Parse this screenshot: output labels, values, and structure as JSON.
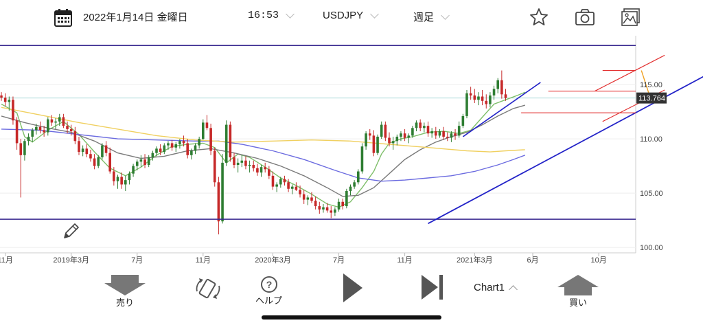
{
  "header": {
    "date": "2022年1月14日 金曜日",
    "time": "16:53",
    "symbol": "USDJPY",
    "timeframe": "週足"
  },
  "footer": {
    "sell_label": "売り",
    "help_label": "ヘルプ",
    "chart_label": "Chart1",
    "buy_label": "買い"
  },
  "colors": {
    "bull": "#2e7d32",
    "bear": "#c62828",
    "ma_fast": "#7fbf6a",
    "ma_mid": "#7a7a7a",
    "ma_slow_blue": "#6b6be0",
    "ma_long_yellow": "#f0d060",
    "trend_line": "#2323c8",
    "channel": "#e23030",
    "horizontal_frame": "#3a2a90"
  },
  "chart_data": {
    "type": "candlestick",
    "y_axis": {
      "min": 99.5,
      "max": 119.5,
      "ticks": [
        100.0,
        105.0,
        110.0,
        115.0
      ]
    },
    "x_axis": {
      "ticks": [
        {
          "label": "11月",
          "t": 1
        },
        {
          "label": "2019年3月",
          "t": 18
        },
        {
          "label": "7月",
          "t": 35
        },
        {
          "label": "11月",
          "t": 52
        },
        {
          "label": "2020年3月",
          "t": 70
        },
        {
          "label": "7月",
          "t": 87
        },
        {
          "label": "11月",
          "t": 104
        },
        {
          "label": "2021年3月",
          "t": 122
        },
        {
          "label": "6月",
          "t": 137
        },
        {
          "label": "10月",
          "t": 154
        }
      ]
    },
    "current_price": "113.764",
    "current_price_value": 113.764,
    "horizontal_lines": [
      118.6,
      102.6
    ],
    "trend_lines": [
      {
        "from": [
          110,
          102.2
        ],
        "to": [
          196,
          118.6
        ]
      }
    ],
    "red_lines": [
      {
        "type": "h",
        "y": 116.3,
        "x0": 155,
        "x1": 196
      },
      {
        "type": "h",
        "y": 114.4,
        "x0": 141,
        "x1": 196
      },
      {
        "type": "h",
        "y": 112.4,
        "x0": 134,
        "x1": 196
      },
      {
        "type": "seg",
        "from": [
          153,
          114.4
        ],
        "to": [
          171,
          117.7
        ]
      },
      {
        "type": "seg",
        "from": [
          155,
          111.6
        ],
        "to": [
          171,
          114.5
        ]
      }
    ],
    "orange_lines": [
      {
        "from": [
          165,
          116.3
        ],
        "to": [
          167,
          114.1
        ]
      }
    ],
    "candles": [
      [
        114.0,
        114.3,
        113.5,
        113.8
      ],
      [
        113.8,
        114.2,
        113.0,
        113.4
      ],
      [
        113.4,
        113.9,
        112.6,
        113.6
      ],
      [
        113.6,
        113.9,
        111.3,
        111.7
      ],
      [
        111.7,
        112.0,
        109.0,
        109.6
      ],
      [
        109.6,
        110.0,
        104.6,
        108.5
      ],
      [
        108.5,
        110.0,
        108.0,
        109.8
      ],
      [
        109.8,
        110.5,
        109.4,
        110.2
      ],
      [
        110.2,
        111.0,
        109.7,
        110.8
      ],
      [
        110.8,
        111.4,
        110.4,
        111.1
      ],
      [
        111.1,
        111.6,
        110.5,
        110.8
      ],
      [
        110.8,
        111.2,
        110.2,
        110.6
      ],
      [
        110.6,
        112.0,
        110.3,
        111.8
      ],
      [
        111.8,
        112.2,
        111.2,
        111.5
      ],
      [
        111.5,
        111.9,
        110.9,
        111.6
      ],
      [
        111.6,
        112.3,
        111.2,
        112.0
      ],
      [
        112.0,
        112.3,
        111.0,
        111.2
      ],
      [
        111.2,
        111.6,
        110.5,
        110.9
      ],
      [
        110.9,
        111.3,
        110.3,
        110.7
      ],
      [
        110.7,
        111.1,
        109.5,
        109.8
      ],
      [
        109.8,
        110.2,
        108.5,
        108.8
      ],
      [
        108.8,
        109.4,
        108.4,
        109.1
      ],
      [
        109.1,
        109.5,
        108.3,
        108.6
      ],
      [
        108.6,
        109.0,
        107.9,
        108.2
      ],
      [
        108.2,
        108.6,
        107.2,
        107.5
      ],
      [
        107.5,
        108.5,
        107.3,
        108.3
      ],
      [
        108.3,
        109.6,
        108.1,
        109.4
      ],
      [
        109.4,
        109.8,
        108.4,
        108.7
      ],
      [
        108.7,
        109.2,
        106.8,
        107.0
      ],
      [
        107.0,
        107.4,
        105.7,
        106.1
      ],
      [
        106.1,
        106.7,
        105.4,
        106.5
      ],
      [
        106.5,
        106.9,
        105.4,
        105.8
      ],
      [
        105.8,
        106.6,
        105.2,
        106.2
      ],
      [
        106.2,
        107.0,
        105.8,
        106.8
      ],
      [
        106.8,
        107.7,
        106.5,
        107.5
      ],
      [
        107.5,
        108.1,
        107.1,
        107.9
      ],
      [
        107.9,
        108.5,
        107.4,
        108.1
      ],
      [
        108.1,
        108.6,
        107.3,
        107.6
      ],
      [
        107.6,
        108.5,
        107.4,
        108.3
      ],
      [
        108.3,
        108.9,
        108.0,
        108.7
      ],
      [
        108.7,
        109.3,
        108.4,
        109.1
      ],
      [
        109.1,
        109.5,
        108.5,
        108.8
      ],
      [
        108.8,
        109.6,
        108.6,
        109.4
      ],
      [
        109.4,
        109.8,
        109.0,
        109.6
      ],
      [
        109.6,
        109.9,
        108.9,
        109.2
      ],
      [
        109.2,
        109.7,
        108.8,
        109.5
      ],
      [
        109.5,
        110.0,
        109.1,
        109.8
      ],
      [
        109.8,
        110.3,
        109.3,
        109.6
      ],
      [
        109.6,
        110.0,
        108.2,
        108.5
      ],
      [
        108.5,
        109.1,
        108.1,
        108.9
      ],
      [
        108.9,
        109.6,
        108.6,
        109.4
      ],
      [
        109.4,
        110.2,
        109.1,
        110.0
      ],
      [
        110.0,
        111.8,
        109.9,
        111.5
      ],
      [
        111.5,
        112.2,
        110.8,
        111.0
      ],
      [
        111.0,
        111.4,
        108.5,
        108.9
      ],
      [
        108.9,
        109.2,
        105.6,
        106.0
      ],
      [
        106.0,
        106.5,
        101.2,
        102.4
      ],
      [
        102.4,
        108.6,
        102.2,
        107.8
      ],
      [
        107.8,
        111.7,
        107.5,
        111.3
      ],
      [
        111.3,
        111.6,
        107.9,
        108.3
      ],
      [
        108.3,
        108.7,
        107.3,
        107.6
      ],
      [
        107.6,
        108.2,
        106.9,
        107.8
      ],
      [
        107.8,
        108.5,
        107.4,
        108.0
      ],
      [
        108.0,
        108.4,
        107.2,
        107.5
      ],
      [
        107.5,
        108.0,
        106.9,
        107.6
      ],
      [
        107.6,
        108.0,
        107.0,
        107.3
      ],
      [
        107.3,
        107.7,
        106.6,
        106.9
      ],
      [
        106.9,
        107.6,
        106.5,
        107.4
      ],
      [
        107.4,
        107.8,
        106.9,
        107.2
      ],
      [
        107.2,
        107.5,
        106.3,
        106.6
      ],
      [
        106.6,
        107.0,
        105.3,
        105.6
      ],
      [
        105.6,
        106.0,
        105.1,
        105.8
      ],
      [
        105.8,
        106.5,
        105.5,
        106.3
      ],
      [
        106.3,
        106.6,
        105.7,
        106.0
      ],
      [
        106.0,
        106.3,
        105.1,
        105.4
      ],
      [
        105.4,
        105.8,
        104.9,
        105.6
      ],
      [
        105.6,
        106.0,
        105.2,
        105.3
      ],
      [
        105.3,
        105.7,
        104.6,
        104.9
      ],
      [
        104.9,
        105.3,
        104.0,
        104.4
      ],
      [
        104.4,
        104.8,
        103.9,
        104.6
      ],
      [
        104.6,
        105.1,
        104.1,
        104.3
      ],
      [
        104.3,
        104.7,
        103.5,
        103.8
      ],
      [
        103.8,
        104.2,
        103.1,
        103.5
      ],
      [
        103.5,
        104.0,
        103.2,
        103.7
      ],
      [
        103.7,
        104.1,
        103.2,
        103.4
      ],
      [
        103.4,
        103.8,
        102.7,
        103.2
      ],
      [
        103.2,
        103.7,
        102.9,
        103.5
      ],
      [
        103.5,
        104.5,
        103.3,
        104.2
      ],
      [
        104.2,
        104.5,
        103.5,
        103.8
      ],
      [
        103.8,
        105.4,
        103.6,
        105.2
      ],
      [
        105.2,
        105.8,
        104.8,
        105.6
      ],
      [
        105.6,
        106.2,
        105.4,
        106.0
      ],
      [
        106.0,
        107.2,
        105.8,
        107.0
      ],
      [
        107.0,
        109.6,
        106.8,
        109.3
      ],
      [
        109.3,
        110.7,
        109.0,
        110.5
      ],
      [
        110.5,
        110.9,
        109.9,
        110.3
      ],
      [
        110.3,
        110.8,
        108.4,
        108.7
      ],
      [
        108.7,
        110.4,
        108.5,
        110.2
      ],
      [
        110.2,
        111.6,
        110.0,
        111.3
      ],
      [
        111.3,
        111.6,
        109.8,
        110.1
      ],
      [
        110.1,
        110.6,
        109.3,
        109.6
      ],
      [
        109.6,
        110.2,
        109.0,
        109.8
      ],
      [
        109.8,
        110.4,
        109.4,
        110.2
      ],
      [
        110.2,
        110.7,
        109.8,
        110.5
      ],
      [
        110.5,
        110.9,
        109.8,
        110.1
      ],
      [
        110.1,
        110.5,
        109.6,
        110.3
      ],
      [
        110.3,
        111.2,
        110.1,
        111.0
      ],
      [
        111.0,
        111.7,
        110.7,
        111.5
      ],
      [
        111.5,
        111.8,
        110.7,
        111.0
      ],
      [
        111.0,
        111.5,
        110.6,
        111.2
      ],
      [
        111.2,
        111.6,
        110.2,
        110.5
      ],
      [
        110.5,
        111.0,
        110.1,
        110.7
      ],
      [
        110.7,
        111.1,
        110.0,
        110.3
      ],
      [
        110.3,
        110.9,
        110.1,
        110.7
      ],
      [
        110.7,
        111.1,
        109.9,
        110.2
      ],
      [
        110.2,
        110.6,
        109.8,
        110.1
      ],
      [
        110.1,
        110.7,
        109.7,
        110.5
      ],
      [
        110.5,
        110.9,
        109.9,
        110.3
      ],
      [
        110.3,
        111.6,
        110.1,
        111.2
      ],
      [
        111.2,
        112.3,
        111.0,
        112.1
      ],
      [
        112.1,
        114.5,
        111.9,
        114.2
      ],
      [
        114.2,
        114.8,
        113.6,
        114.0
      ],
      [
        114.0,
        114.6,
        113.3,
        113.6
      ],
      [
        113.6,
        114.3,
        113.1,
        113.9
      ],
      [
        113.9,
        114.5,
        113.1,
        113.5
      ],
      [
        113.5,
        114.1,
        112.8,
        113.2
      ],
      [
        113.2,
        114.3,
        112.9,
        114.0
      ],
      [
        114.0,
        114.9,
        113.6,
        114.6
      ],
      [
        114.6,
        115.6,
        114.2,
        115.4
      ],
      [
        115.4,
        116.3,
        113.7,
        114.1
      ],
      [
        114.1,
        114.6,
        113.5,
        113.764
      ]
    ],
    "ma_series": {
      "ma_fast": [
        [
          0,
          113.2
        ],
        [
          4,
          112.4
        ],
        [
          6,
          110.2
        ],
        [
          8,
          109.7
        ],
        [
          12,
          110.8
        ],
        [
          16,
          111.6
        ],
        [
          20,
          110.4
        ],
        [
          24,
          108.8
        ],
        [
          28,
          107.3
        ],
        [
          32,
          106.6
        ],
        [
          36,
          107.4
        ],
        [
          40,
          108.5
        ],
        [
          44,
          109.3
        ],
        [
          48,
          109.5
        ],
        [
          52,
          109.6
        ],
        [
          55,
          109.2
        ],
        [
          58,
          107.8
        ],
        [
          61,
          108.6
        ],
        [
          64,
          108.3
        ],
        [
          68,
          107.4
        ],
        [
          72,
          106.4
        ],
        [
          76,
          105.7
        ],
        [
          80,
          104.9
        ],
        [
          84,
          104.0
        ],
        [
          87,
          103.7
        ],
        [
          90,
          104.2
        ],
        [
          93,
          105.5
        ],
        [
          96,
          107.0
        ],
        [
          98,
          108.6
        ],
        [
          100,
          109.6
        ],
        [
          103,
          110.0
        ],
        [
          106,
          110.2
        ],
        [
          110,
          110.6
        ],
        [
          114,
          110.7
        ],
        [
          118,
          110.5
        ],
        [
          121,
          110.8
        ],
        [
          124,
          112.0
        ],
        [
          127,
          113.2
        ],
        [
          130,
          113.6
        ],
        [
          133,
          114.0
        ],
        [
          135,
          114.3
        ]
      ],
      "ma_mid": [
        [
          0,
          112.1
        ],
        [
          6,
          111.5
        ],
        [
          12,
          111.0
        ],
        [
          18,
          110.6
        ],
        [
          24,
          109.8
        ],
        [
          30,
          108.7
        ],
        [
          36,
          108.2
        ],
        [
          42,
          108.4
        ],
        [
          48,
          108.9
        ],
        [
          54,
          109.1
        ],
        [
          60,
          108.7
        ],
        [
          66,
          108.2
        ],
        [
          72,
          107.5
        ],
        [
          78,
          106.6
        ],
        [
          84,
          105.5
        ],
        [
          88,
          104.7
        ],
        [
          92,
          104.8
        ],
        [
          96,
          105.5
        ],
        [
          100,
          106.8
        ],
        [
          104,
          108.1
        ],
        [
          108,
          109.0
        ],
        [
          112,
          109.7
        ],
        [
          116,
          110.2
        ],
        [
          120,
          110.6
        ],
        [
          124,
          111.3
        ],
        [
          128,
          112.1
        ],
        [
          132,
          112.8
        ],
        [
          135,
          113.1
        ]
      ],
      "ma_slow_blue": [
        [
          0,
          110.9
        ],
        [
          10,
          110.8
        ],
        [
          20,
          110.4
        ],
        [
          30,
          110.0
        ],
        [
          40,
          109.9
        ],
        [
          50,
          109.8
        ],
        [
          56,
          109.8
        ],
        [
          62,
          109.5
        ],
        [
          70,
          108.9
        ],
        [
          78,
          108.1
        ],
        [
          86,
          107.1
        ],
        [
          92,
          106.4
        ],
        [
          98,
          106.1
        ],
        [
          104,
          106.2
        ],
        [
          110,
          106.4
        ],
        [
          116,
          106.6
        ],
        [
          122,
          107.0
        ],
        [
          128,
          107.6
        ],
        [
          132,
          108.1
        ],
        [
          135,
          108.5
        ]
      ],
      "ma_long_yellow": [
        [
          0,
          112.9
        ],
        [
          10,
          112.2
        ],
        [
          20,
          111.5
        ],
        [
          30,
          110.9
        ],
        [
          40,
          110.3
        ],
        [
          50,
          109.9
        ],
        [
          60,
          109.7
        ],
        [
          70,
          109.8
        ],
        [
          80,
          109.9
        ],
        [
          90,
          109.8
        ],
        [
          100,
          109.5
        ],
        [
          110,
          109.2
        ],
        [
          120,
          108.9
        ],
        [
          126,
          108.8
        ],
        [
          130,
          108.9
        ],
        [
          135,
          109.0
        ]
      ]
    }
  }
}
